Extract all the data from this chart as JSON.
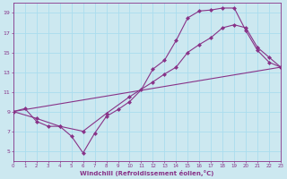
{
  "xlabel": "Windchill (Refroidissement éolien,°C)",
  "xlim": [
    0,
    23
  ],
  "ylim": [
    4,
    20
  ],
  "xticks": [
    0,
    1,
    2,
    3,
    4,
    5,
    6,
    7,
    8,
    9,
    10,
    11,
    12,
    13,
    14,
    15,
    16,
    17,
    18,
    19,
    20,
    21,
    22,
    23
  ],
  "yticks": [
    5,
    7,
    9,
    11,
    13,
    15,
    17,
    19
  ],
  "bg_color": "#cce8f0",
  "line_color": "#883388",
  "grid_color": "#aaddee",
  "lines": [
    {
      "x": [
        0,
        1,
        2,
        3,
        4,
        5,
        6,
        7,
        8,
        9,
        10,
        11,
        12,
        13,
        14,
        15,
        16,
        17,
        18,
        19,
        20,
        21,
        22,
        23
      ],
      "y": [
        9.0,
        9.3,
        8.0,
        7.5,
        7.5,
        6.5,
        4.8,
        6.8,
        8.5,
        9.2,
        10.0,
        11.2,
        13.3,
        14.2,
        16.2,
        18.5,
        19.2,
        19.3,
        19.5,
        19.5,
        17.2,
        15.2,
        14.0,
        13.5
      ]
    },
    {
      "x": [
        0,
        2,
        4,
        6,
        8,
        10,
        12,
        13,
        14,
        15,
        16,
        17,
        18,
        19,
        20,
        21,
        22,
        23
      ],
      "y": [
        9.0,
        8.3,
        7.5,
        7.0,
        8.8,
        10.5,
        12.0,
        12.8,
        13.5,
        15.0,
        15.8,
        16.5,
        17.5,
        17.8,
        17.5,
        15.5,
        14.5,
        13.5
      ]
    },
    {
      "x": [
        0,
        23
      ],
      "y": [
        9.0,
        13.5
      ]
    }
  ]
}
